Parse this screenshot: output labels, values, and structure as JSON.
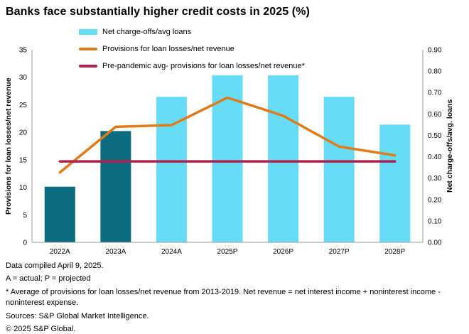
{
  "title": "Banks face substantially higher credit costs in 2025 (%)",
  "legend": {
    "items": [
      {
        "label": "Net charge-offs/avg loans",
        "type": "bar",
        "color": "#66dcf8"
      },
      {
        "label": "Provisions for loan losses/net revenue",
        "type": "line",
        "color": "#de7c1a"
      },
      {
        "label": "Pre-pandemic avg- provisions for loan losses/net revenue*",
        "type": "line",
        "color": "#b51e4d"
      }
    ]
  },
  "chart_data": {
    "type": "bar",
    "subtype": "combo bar + line, dual axis",
    "categories": [
      "2022A",
      "2023A",
      "2024A",
      "2025P",
      "2026P",
      "2027P",
      "2028P"
    ],
    "series": [
      {
        "name": "Net charge-offs/avg loans",
        "type": "bar",
        "axis": "right",
        "values": [
          0.26,
          0.52,
          0.68,
          0.78,
          0.78,
          0.68,
          0.55
        ],
        "colors_by_point": [
          "#0d6b80",
          "#0d6b80",
          "#66dcf8",
          "#66dcf8",
          "#66dcf8",
          "#66dcf8",
          "#66dcf8"
        ]
      },
      {
        "name": "Provisions for loan losses/net revenue",
        "type": "line",
        "axis": "left",
        "values": [
          12.7,
          21.0,
          21.3,
          26.3,
          23.0,
          17.4,
          15.8
        ],
        "color": "#de7c1a"
      },
      {
        "name": "Pre-pandemic avg- provisions for loan losses/net revenue*",
        "type": "line",
        "axis": "left",
        "values": [
          14.7,
          14.7,
          14.7,
          14.7,
          14.7,
          14.7,
          14.7
        ],
        "color": "#b51e4d"
      }
    ],
    "left_axis": {
      "title": "Provisions for loan losses/net revenue",
      "min": 0,
      "max": 35,
      "ticks": [
        "0",
        "5",
        "10",
        "15",
        "20",
        "25",
        "30",
        "35"
      ]
    },
    "right_axis": {
      "title": "Net charge-offs/avg. loans",
      "min": 0,
      "max": 0.9,
      "ticks": [
        "0.00",
        "0.10",
        "0.20",
        "0.30",
        "0.40",
        "0.50",
        "0.60",
        "0.70",
        "0.80",
        "0.90"
      ]
    },
    "grid": false,
    "legend_position": "top",
    "axis_line_color": "#9b9b9b"
  },
  "footer": {
    "lines": [
      "Data compiled April 9, 2025.",
      "A = actual; P = projected",
      "* Average of provisions for loan losses/net revenue from 2013-2019. Net revenue = net interest income + noninterest income - noninterest expense.",
      "Sources: S&P Global Market Intelligence.",
      "© 2025 S&P Global."
    ]
  }
}
